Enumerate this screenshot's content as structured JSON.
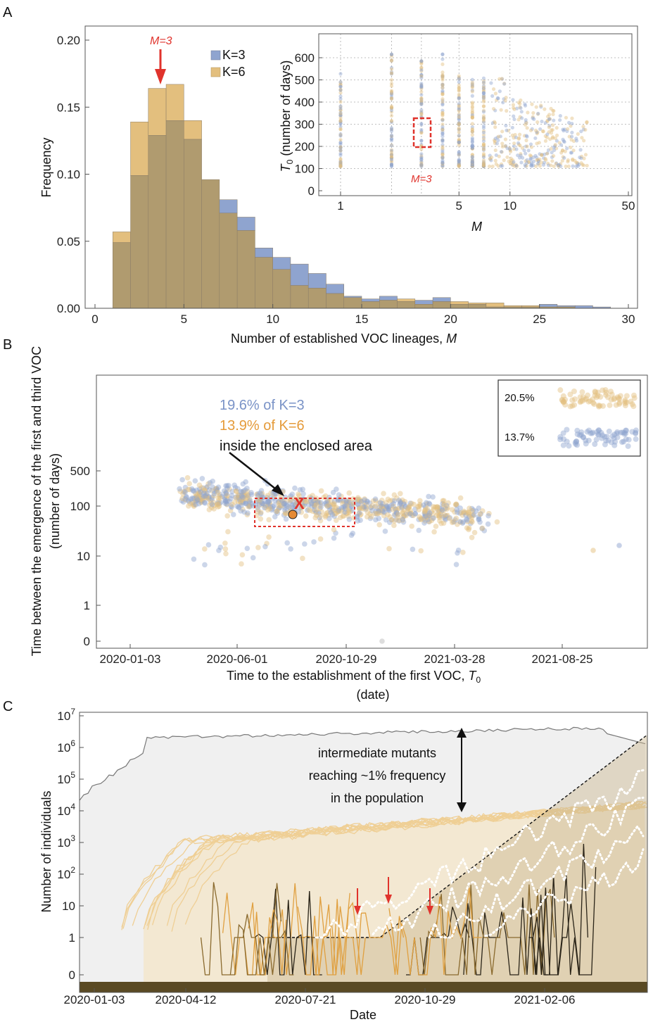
{
  "panels": {
    "a": "A",
    "b": "B",
    "c": "C"
  },
  "colors": {
    "k3": "#8fa4cf",
    "k6": "#e3bf7e",
    "overlap": "#b09b6f",
    "red": "#e0332c",
    "orange": "#e59b3a",
    "dark": "#3e3420"
  },
  "chart_data": [
    {
      "id": "A-hist",
      "type": "bar",
      "xlabel": "Number of established VOC lineages, ",
      "xlabel_var": "M",
      "ylabel": "Frequency",
      "xlim": [
        0,
        30
      ],
      "ylim": [
        0,
        0.21
      ],
      "xticks": [
        "0",
        "5",
        "10",
        "15",
        "20",
        "25",
        "30"
      ],
      "yticks": [
        "0.00",
        "0.05",
        "0.10",
        "0.15",
        "0.20"
      ],
      "categories": [
        1,
        2,
        3,
        4,
        5,
        6,
        7,
        8,
        9,
        10,
        11,
        12,
        13,
        14,
        15,
        16,
        17,
        18,
        19,
        20,
        21,
        22,
        23,
        24,
        25,
        26,
        27,
        28
      ],
      "series": [
        {
          "name": "K=3",
          "values": [
            0.049,
            0.099,
            0.129,
            0.14,
            0.126,
            0.096,
            0.081,
            0.068,
            0.045,
            0.038,
            0.033,
            0.026,
            0.018,
            0.009,
            0.007,
            0.009,
            0.005,
            0.006,
            0.008,
            0.003,
            0.003,
            0.001,
            0.001,
            0.001,
            0.003,
            0.002,
            0.002,
            0.001
          ]
        },
        {
          "name": "K=6",
          "values": [
            0.057,
            0.139,
            0.164,
            0.167,
            0.14,
            0.096,
            0.071,
            0.058,
            0.038,
            0.029,
            0.017,
            0.015,
            0.011,
            0.008,
            0.005,
            0.006,
            0.007,
            0.003,
            0.005,
            0.005,
            0.004,
            0.004,
            0.002,
            0.002,
            0.001,
            0.001,
            0.0,
            0.0
          ]
        }
      ],
      "annotation": "M=3"
    },
    {
      "id": "A-inset",
      "type": "scatter",
      "xlabel": "M",
      "ylabel_main": "T",
      "ylabel_sub": "0",
      "ylabel_rest": " (number of days)",
      "xscale": "log",
      "xlim": [
        0.85,
        50
      ],
      "ylim": [
        0,
        680
      ],
      "xticks": [
        "1",
        "5",
        "10",
        "50"
      ],
      "yticks": [
        "0",
        "100",
        "200",
        "300",
        "400",
        "500",
        "600"
      ],
      "columns_M": [
        1,
        2,
        3,
        4,
        5,
        6,
        7,
        8,
        9,
        10,
        11,
        12,
        13,
        14,
        15,
        16,
        17,
        18,
        19,
        20,
        21,
        22,
        23,
        24,
        25,
        26,
        27,
        28
      ],
      "annotation": "M=3",
      "highlight_box_y": [
        190,
        290
      ]
    },
    {
      "id": "B",
      "type": "scatter",
      "xlabel": "Time to the establishment of the first VOC,  ",
      "xlabel_var": "T",
      "xlabel_sub": "0",
      "xlabel2": "(date)",
      "ylabel": "Time between the emergence of the first and third VOC",
      "ylabel2": "(number of days)",
      "yscale": "log",
      "xticks": [
        "2020-01-03",
        "2020-06-01",
        "2020-10-29",
        "2021-03-28",
        "2021-08-25"
      ],
      "yticks": [
        "0",
        "1",
        "10",
        "100",
        "500"
      ],
      "legend": [
        {
          "label": "20.5%",
          "series": "K=6"
        },
        {
          "label": "13.7%",
          "series": "K=3"
        }
      ],
      "legend_position": "top-right",
      "text1": "19.6% of K=3",
      "text2": "13.9% of K=6",
      "text3": "inside the enclosed area",
      "marker": "X"
    },
    {
      "id": "C",
      "type": "line",
      "xlabel": "Date",
      "ylabel": "Number of individuals",
      "yscale": "log",
      "xticks": [
        "2020-01-03",
        "2020-04-12",
        "2020-07-21",
        "2020-10-29",
        "2021-02-06"
      ],
      "yticks": [
        {
          "base": "10",
          "exp": "7"
        },
        {
          "base": "10",
          "exp": "6"
        },
        {
          "base": "10",
          "exp": "5"
        },
        {
          "base": "10",
          "exp": "4"
        },
        {
          "base": "10",
          "exp": "3"
        },
        {
          "base": "10",
          "exp": "2"
        },
        {
          "base": "10",
          "exp": ""
        },
        {
          "base": "1",
          "exp": ""
        },
        {
          "base": "0",
          "exp": ""
        }
      ],
      "annotation": [
        "intermediate mutants",
        "reaching ~1% frequency",
        "in the population"
      ]
    }
  ]
}
